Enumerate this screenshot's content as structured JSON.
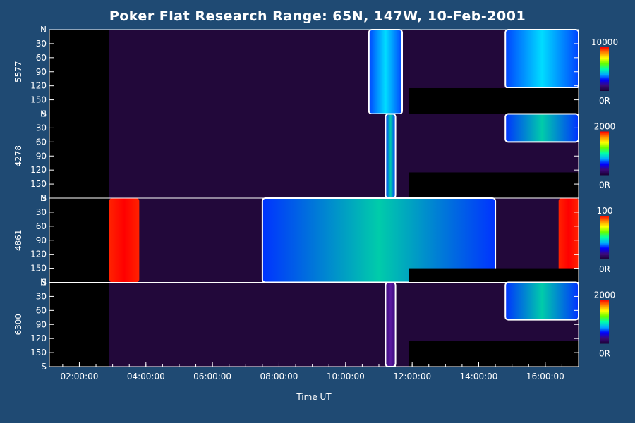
{
  "chart_data": {
    "type": "heatmap",
    "title": "Poker Flat Research Range: 65N, 147W, 10-Feb-2001",
    "xlabel": "Time UT",
    "x_ticks": [
      "02:00:00",
      "04:00:00",
      "06:00:00",
      "08:00:00",
      "10:00:00",
      "12:00:00",
      "14:00:00",
      "16:00:00"
    ],
    "x_tick_hours": [
      2,
      4,
      6,
      8,
      10,
      12,
      14,
      16
    ],
    "xlim_hours": [
      1.1,
      17.0
    ],
    "y_ticks": [
      "N",
      "30",
      "60",
      "90",
      "120",
      "150",
      "S"
    ],
    "y_tick_values": [
      0,
      30,
      60,
      90,
      120,
      150,
      180
    ],
    "ylim": [
      0,
      180
    ],
    "panels": [
      {
        "wavelength": "5577",
        "colorbar_max": "10000",
        "colorbar_min": "0R",
        "data_start_hour": 2.9,
        "no_data_after_hour": 11.9,
        "no_data_below_angle": 125,
        "bright_regions": [
          {
            "start_hour": 10.7,
            "end_hour": 11.7,
            "level": "high"
          },
          {
            "start_hour": 14.8,
            "end_hour": 17.0,
            "level": "high",
            "angle_max": 125
          }
        ]
      },
      {
        "wavelength": "4278",
        "colorbar_max": "2000",
        "colorbar_min": "0R",
        "data_start_hour": 2.9,
        "no_data_after_hour": 11.9,
        "no_data_below_angle": 125,
        "bright_regions": [
          {
            "start_hour": 11.2,
            "end_hour": 11.5,
            "level": "medium"
          },
          {
            "start_hour": 14.8,
            "end_hour": 17.0,
            "level": "medium",
            "angle_max": 60
          }
        ]
      },
      {
        "wavelength": "4861",
        "colorbar_max": "100",
        "colorbar_min": "0R",
        "data_start_hour": 2.9,
        "no_data_after_hour": 11.9,
        "no_data_below_angle": 150,
        "bright_regions": [
          {
            "start_hour": 2.9,
            "end_hour": 3.8,
            "level": "saturated"
          },
          {
            "start_hour": 7.5,
            "end_hour": 14.5,
            "level": "medium"
          },
          {
            "start_hour": 16.4,
            "end_hour": 17.0,
            "level": "saturated"
          }
        ]
      },
      {
        "wavelength": "6300",
        "colorbar_max": "2000",
        "colorbar_min": "0R",
        "data_start_hour": 2.9,
        "no_data_after_hour": 11.9,
        "no_data_below_angle": 125,
        "bright_regions": [
          {
            "start_hour": 11.2,
            "end_hour": 11.5,
            "level": "low"
          },
          {
            "start_hour": 14.8,
            "end_hour": 17.0,
            "level": "medium",
            "angle_max": 80
          }
        ]
      }
    ],
    "colormap": [
      "#1a0033",
      "#3a0a7a",
      "#0000ff",
      "#00aaff",
      "#00ffaa",
      "#66ff00",
      "#ffff00",
      "#ff8800",
      "#ff0000"
    ]
  }
}
